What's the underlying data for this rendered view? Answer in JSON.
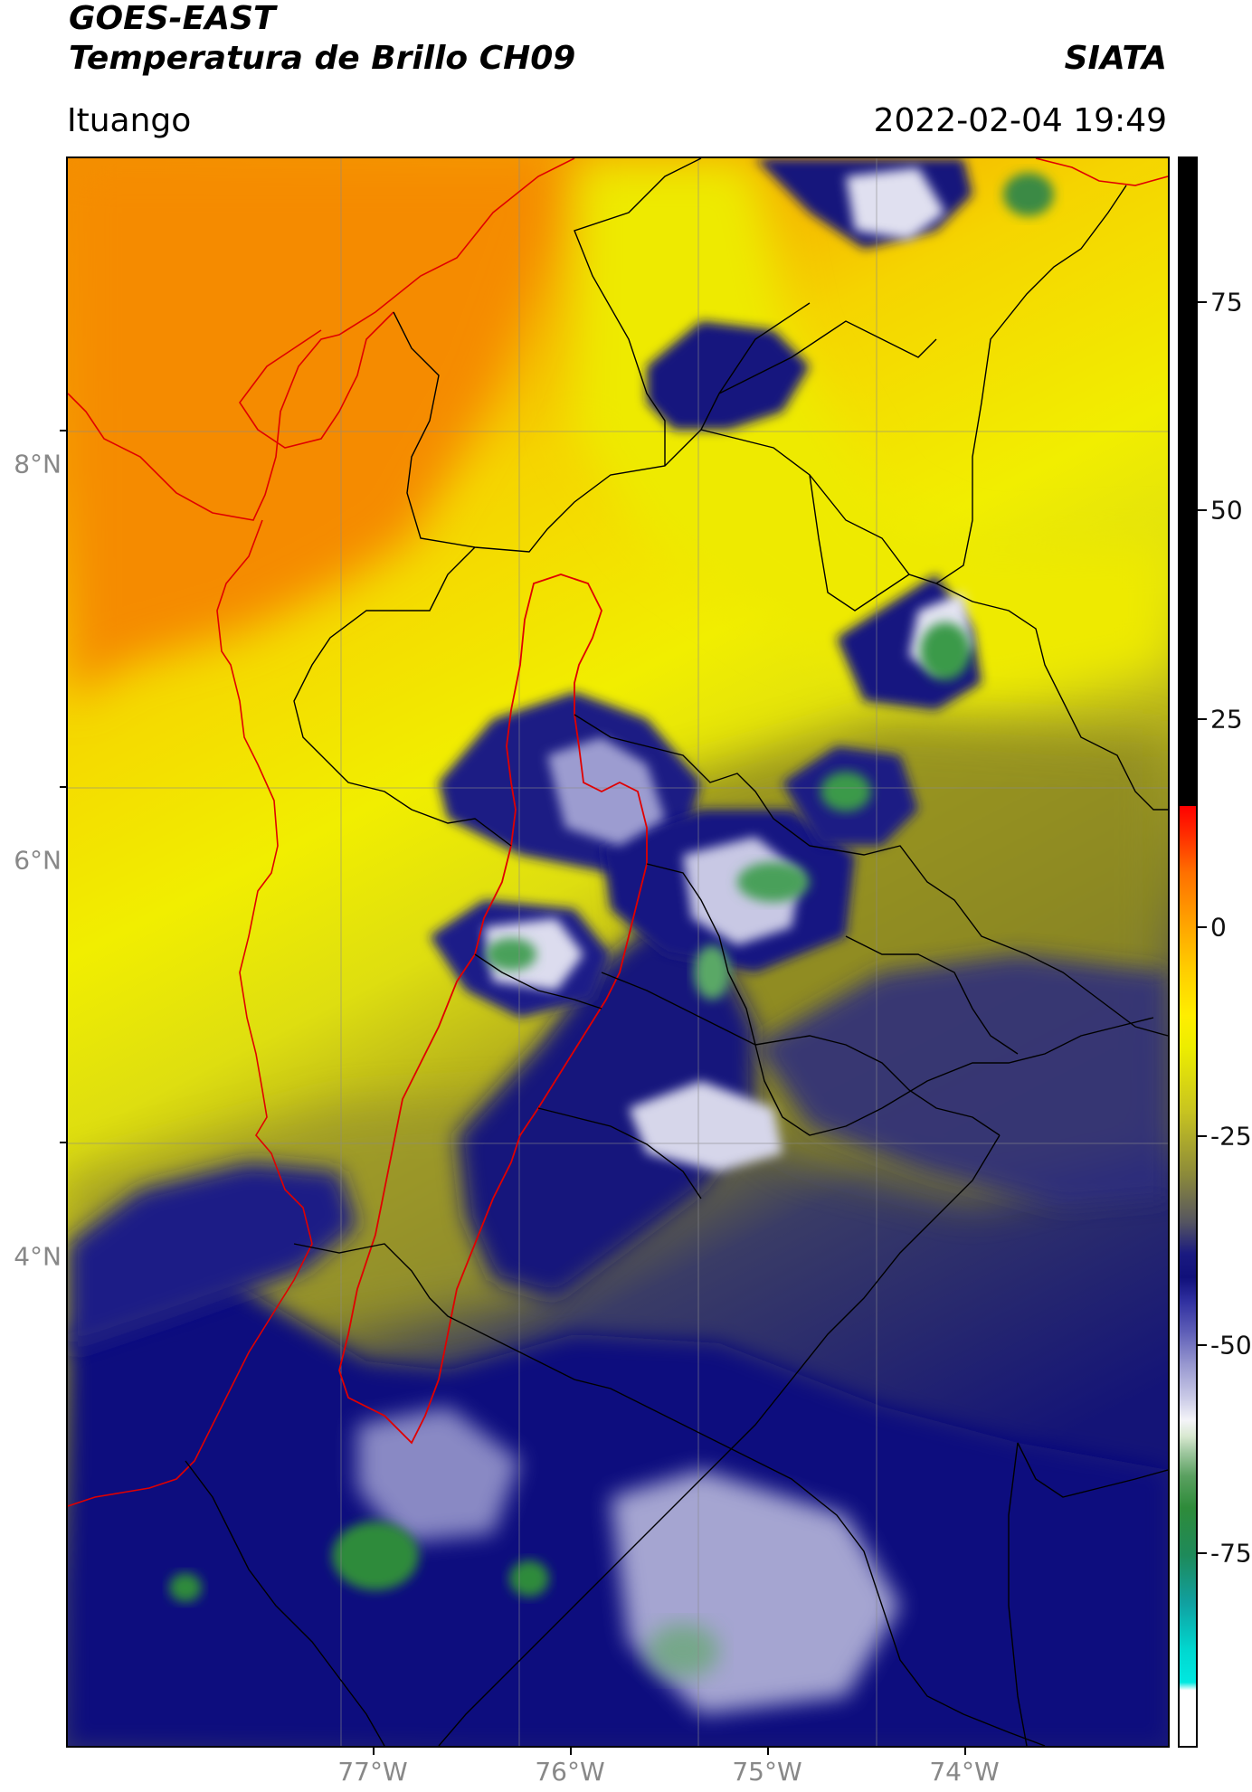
{
  "header": {
    "title_line1": "GOES-EAST",
    "title_line2": "Temperatura de Brillo CH09",
    "brand": "SIATA",
    "region": "Ituango",
    "datetime": "2022-02-04 19:49"
  },
  "map": {
    "lat_labels": [
      {
        "label": "8°N",
        "value": 8
      },
      {
        "label": "6°N",
        "value": 6
      },
      {
        "label": "4°N",
        "value": 4
      }
    ],
    "lon_labels": [
      {
        "label": "77°W",
        "value": -77
      },
      {
        "label": "76°W",
        "value": -76
      },
      {
        "label": "75°W",
        "value": -75
      },
      {
        "label": "74°W",
        "value": -74
      }
    ],
    "extent": {
      "lon_min": -78.55,
      "lon_max": -73.0,
      "lat_min": 1.55,
      "lat_max": 9.55
    },
    "colors": {
      "warm_orange": "#ff9900",
      "yellow": "#f0f000",
      "olive": "#8a8a2a",
      "navy": "#0a0a80",
      "white": "#f2f2f2",
      "green": "#2e8b3a",
      "border_red": "#e00000",
      "border_black": "#000000"
    }
  },
  "colorbar": {
    "ticks": [
      {
        "label": "75",
        "value": 75
      },
      {
        "label": "50",
        "value": 50
      },
      {
        "label": "25",
        "value": 25
      },
      {
        "label": "0",
        "value": 0
      },
      {
        "label": "-25",
        "value": -25
      },
      {
        "label": "-50",
        "value": -50
      },
      {
        "label": "-75",
        "value": -75
      }
    ],
    "range": [
      -90,
      90
    ]
  }
}
